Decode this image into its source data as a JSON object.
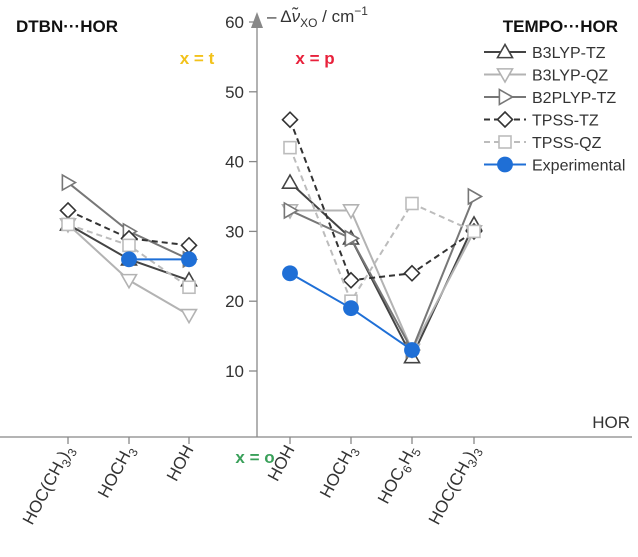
{
  "chart_data": {
    "type": "line",
    "y_axis_label": {
      "prefix": "– Δ",
      "symbol": "ν̃",
      "subscript": "XO",
      "unit": " / cm",
      "exponent": "−1"
    },
    "x_axis_label": "HOR",
    "ylim": [
      5,
      60
    ],
    "y_ticks": [
      10,
      20,
      30,
      40,
      50,
      60
    ],
    "panels": {
      "left": {
        "title": "DTBN···HOR",
        "categories": [
          {
            "main": "HOC(CH",
            "sub": "3",
            "tail": ")",
            "sub2": "3"
          },
          {
            "main": "HOCH",
            "sub": "3",
            "tail": "",
            "sub2": ""
          },
          {
            "main": "HOH",
            "sub": "",
            "tail": "",
            "sub2": ""
          }
        ]
      },
      "right": {
        "title": "TEMPO···HOR",
        "categories": [
          {
            "main": "HOH",
            "sub": "",
            "tail": "",
            "sub2": "",
            "sub_group": ""
          },
          {
            "main": "HOCH",
            "sub": "3",
            "tail": "",
            "sub2": "",
            "sub_group": ""
          },
          {
            "main": "HOC",
            "sub": "6",
            "tail": "H",
            "sub2": "5",
            "sub_group": ""
          },
          {
            "main": "HOC(CH",
            "sub": "3",
            "tail": ")",
            "sub2": "3",
            "sub_group": ""
          }
        ]
      }
    },
    "annotations": [
      {
        "text": "x = t",
        "color": "#f2c21b"
      },
      {
        "text": "x = p",
        "color": "#e8213b"
      },
      {
        "text": "x = o",
        "color": "#3aa05a"
      }
    ],
    "series": [
      {
        "name": "B3LYP-TZ",
        "color": "#444444",
        "dash": "solid",
        "marker": "triangle-up",
        "left": [
          31,
          26,
          23
        ],
        "right": [
          37,
          29,
          12,
          31
        ]
      },
      {
        "name": "B3LYP-QZ",
        "color": "#b3b3b3",
        "dash": "solid",
        "marker": "triangle-down",
        "left": [
          31,
          23,
          18
        ],
        "right": [
          33,
          33,
          13,
          30
        ]
      },
      {
        "name": "B2PLYP-TZ",
        "color": "#777777",
        "dash": "solid",
        "marker": "triangle-right",
        "left": [
          37,
          30,
          26
        ],
        "right": [
          33,
          29,
          13,
          35
        ]
      },
      {
        "name": "TPSS-TZ",
        "color": "#333333",
        "dash": "dashed",
        "marker": "diamond",
        "left": [
          33,
          29,
          28
        ],
        "right": [
          46,
          23,
          24,
          30
        ]
      },
      {
        "name": "TPSS-QZ",
        "color": "#bcbcbc",
        "dash": "dashed",
        "marker": "square",
        "left": [
          31,
          28,
          22
        ],
        "right": [
          42,
          20,
          34,
          30
        ]
      },
      {
        "name": "Experimental",
        "color": "#1f6fd6",
        "dash": "solid",
        "marker": "circle",
        "left": [
          null,
          26,
          26
        ],
        "right": [
          24,
          19,
          13,
          null
        ]
      }
    ]
  }
}
